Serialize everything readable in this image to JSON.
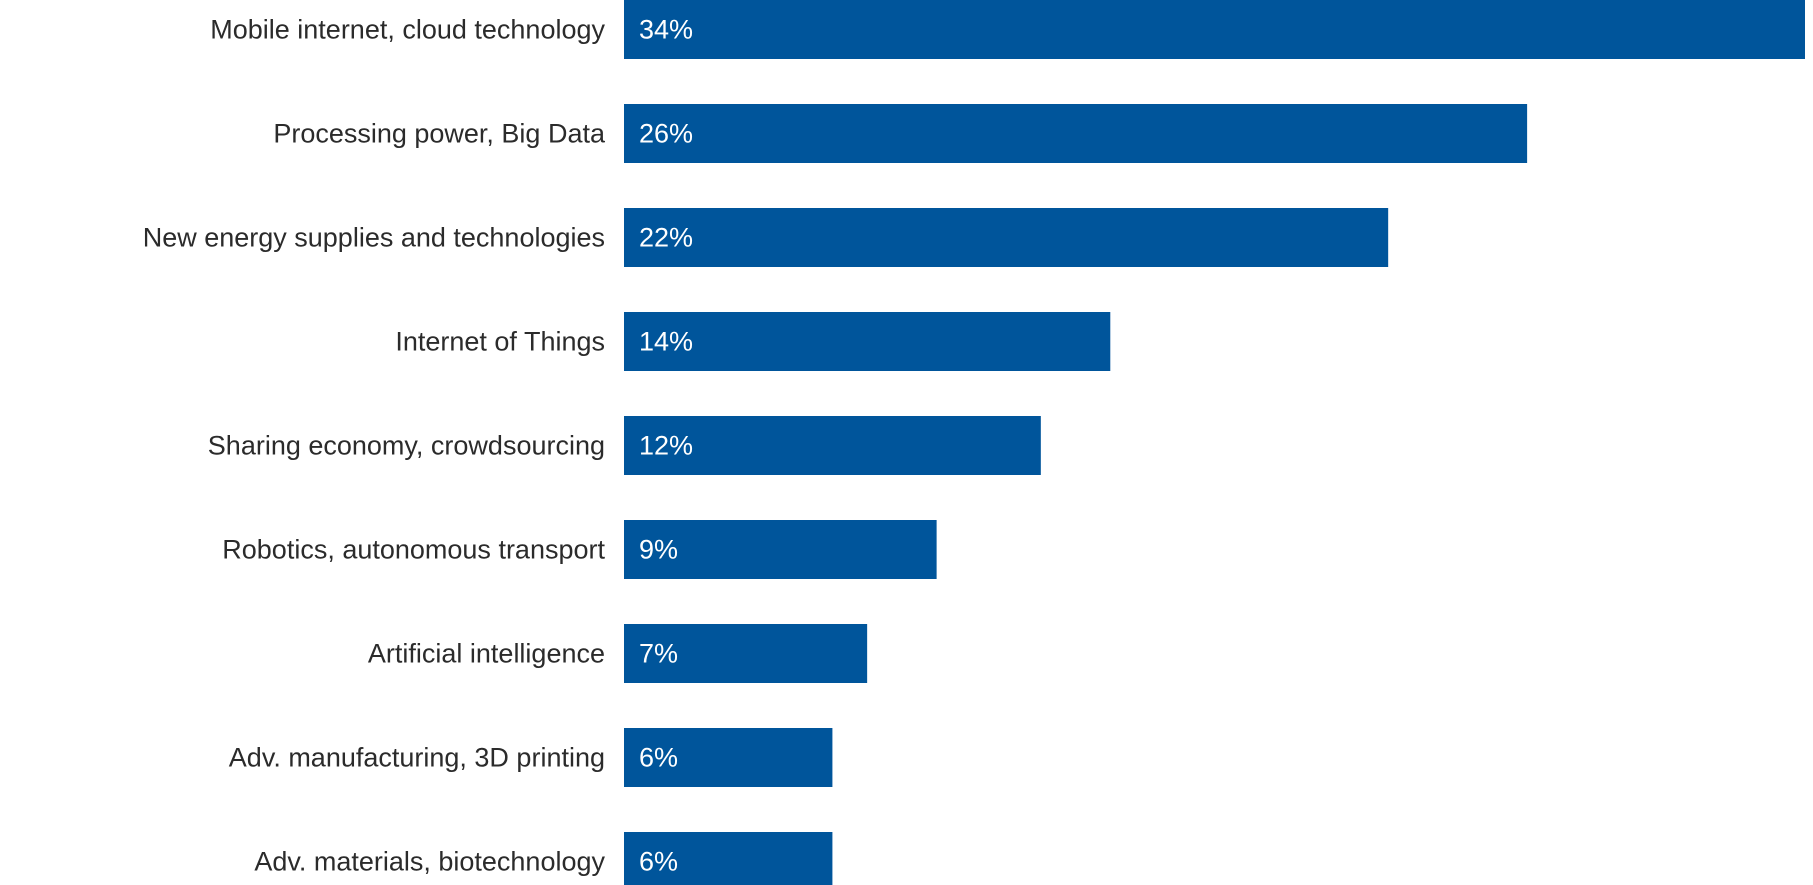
{
  "chart_data": {
    "type": "bar",
    "orientation": "horizontal",
    "categories": [
      "Mobile internet, cloud technology",
      "Processing power, Big Data",
      "New energy supplies and technologies",
      "Internet of Things",
      "Sharing economy, crowdsourcing",
      "Robotics, autonomous transport",
      "Artificial intelligence",
      "Adv. manufacturing, 3D printing",
      "Adv. materials, biotechnology"
    ],
    "values": [
      34,
      26,
      22,
      14,
      12,
      9,
      7,
      6,
      6
    ],
    "value_labels": [
      "34%",
      "26%",
      "22%",
      "14%",
      "12%",
      "9%",
      "7%",
      "6%",
      "6%"
    ],
    "unit": "%",
    "xlim": [
      0,
      34
    ],
    "grid": false,
    "legend": "none",
    "bar_color": "#00559b",
    "label_color": "#2b2b2b",
    "value_label_color": "#ffffff"
  }
}
